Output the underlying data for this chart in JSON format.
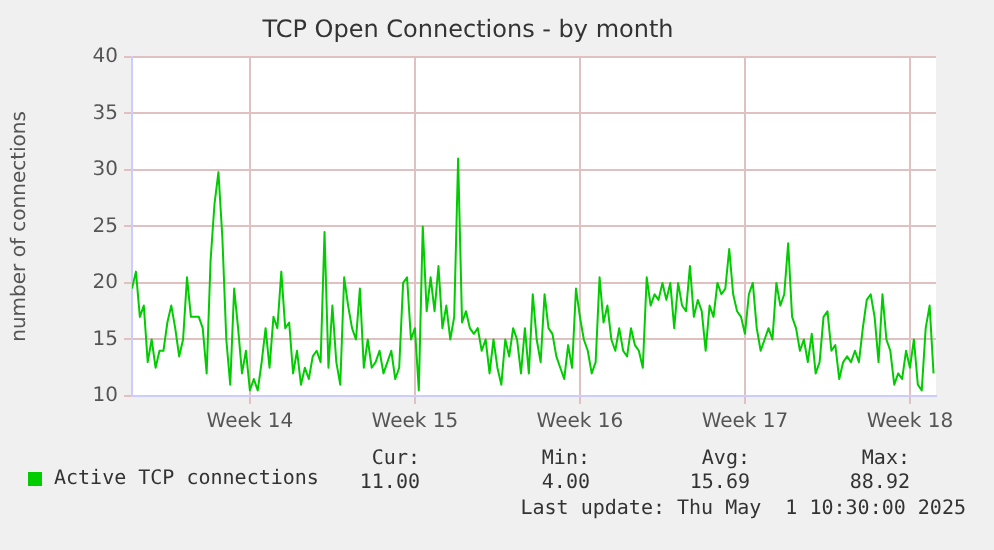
{
  "chart_data": {
    "type": "line",
    "title": "TCP Open Connections - by month",
    "ylabel": "number of connections",
    "x": [
      "2025-03-28T08:00",
      "2025-03-28T12:00",
      "2025-03-28T16:00",
      "2025-03-28T20:00",
      "2025-03-29T00:00",
      "2025-03-29T04:00",
      "2025-03-29T08:00",
      "2025-03-29T12:00",
      "2025-03-29T16:00",
      "2025-03-29T20:00",
      "2025-03-30T00:00",
      "2025-03-30T04:00",
      "2025-03-30T08:00",
      "2025-03-30T12:00",
      "2025-03-30T16:00",
      "2025-03-30T20:00",
      "2025-03-31T00:00",
      "2025-03-31T04:00",
      "2025-03-31T08:00",
      "2025-03-31T12:00",
      "2025-03-31T16:00",
      "2025-03-31T20:00",
      "2025-04-01T00:00",
      "2025-04-01T04:00",
      "2025-04-01T08:00",
      "2025-04-01T12:00",
      "2025-04-01T16:00",
      "2025-04-01T20:00",
      "2025-04-02T00:00",
      "2025-04-02T04:00",
      "2025-04-02T08:00",
      "2025-04-02T12:00",
      "2025-04-02T16:00",
      "2025-04-02T20:00",
      "2025-04-03T00:00",
      "2025-04-03T04:00",
      "2025-04-03T08:00",
      "2025-04-03T12:00",
      "2025-04-03T16:00",
      "2025-04-03T20:00",
      "2025-04-04T00:00",
      "2025-04-04T04:00",
      "2025-04-04T08:00",
      "2025-04-04T12:00",
      "2025-04-04T16:00",
      "2025-04-04T20:00",
      "2025-04-05T00:00",
      "2025-04-05T04:00",
      "2025-04-05T08:00",
      "2025-04-05T12:00",
      "2025-04-05T16:00",
      "2025-04-05T20:00",
      "2025-04-06T00:00",
      "2025-04-06T04:00",
      "2025-04-06T08:00",
      "2025-04-06T12:00",
      "2025-04-06T16:00",
      "2025-04-06T20:00",
      "2025-04-07T00:00",
      "2025-04-07T04:00",
      "2025-04-07T08:00",
      "2025-04-07T12:00",
      "2025-04-07T16:00",
      "2025-04-07T20:00",
      "2025-04-08T00:00",
      "2025-04-08T04:00",
      "2025-04-08T08:00",
      "2025-04-08T12:00",
      "2025-04-08T16:00",
      "2025-04-08T20:00",
      "2025-04-09T00:00",
      "2025-04-09T04:00",
      "2025-04-09T08:00",
      "2025-04-09T12:00",
      "2025-04-09T16:00",
      "2025-04-09T20:00",
      "2025-04-10T00:00",
      "2025-04-10T04:00",
      "2025-04-10T08:00",
      "2025-04-10T12:00",
      "2025-04-10T16:00",
      "2025-04-10T20:00",
      "2025-04-11T00:00",
      "2025-04-11T04:00",
      "2025-04-11T08:00",
      "2025-04-11T12:00",
      "2025-04-11T16:00",
      "2025-04-11T20:00",
      "2025-04-12T00:00",
      "2025-04-12T04:00",
      "2025-04-12T08:00",
      "2025-04-12T12:00",
      "2025-04-12T16:00",
      "2025-04-12T20:00",
      "2025-04-13T00:00",
      "2025-04-13T04:00",
      "2025-04-13T08:00",
      "2025-04-13T12:00",
      "2025-04-13T16:00",
      "2025-04-13T20:00",
      "2025-04-14T00:00",
      "2025-04-14T04:00",
      "2025-04-14T08:00",
      "2025-04-14T12:00",
      "2025-04-14T16:00",
      "2025-04-14T20:00",
      "2025-04-15T00:00",
      "2025-04-15T04:00",
      "2025-04-15T08:00",
      "2025-04-15T12:00",
      "2025-04-15T16:00",
      "2025-04-15T20:00",
      "2025-04-16T00:00",
      "2025-04-16T04:00",
      "2025-04-16T08:00",
      "2025-04-16T12:00",
      "2025-04-16T16:00",
      "2025-04-16T20:00",
      "2025-04-17T00:00",
      "2025-04-17T04:00",
      "2025-04-17T08:00",
      "2025-04-17T12:00",
      "2025-04-17T16:00",
      "2025-04-17T20:00",
      "2025-04-18T00:00",
      "2025-04-18T04:00",
      "2025-04-18T08:00",
      "2025-04-18T12:00",
      "2025-04-18T16:00",
      "2025-04-18T20:00",
      "2025-04-19T00:00",
      "2025-04-19T04:00",
      "2025-04-19T08:00",
      "2025-04-19T12:00",
      "2025-04-19T16:00",
      "2025-04-19T20:00",
      "2025-04-20T00:00",
      "2025-04-20T04:00",
      "2025-04-20T08:00",
      "2025-04-20T12:00",
      "2025-04-20T16:00",
      "2025-04-20T20:00",
      "2025-04-21T00:00",
      "2025-04-21T04:00",
      "2025-04-21T08:00",
      "2025-04-21T12:00",
      "2025-04-21T16:00",
      "2025-04-21T20:00",
      "2025-04-22T00:00",
      "2025-04-22T04:00",
      "2025-04-22T08:00",
      "2025-04-22T12:00",
      "2025-04-22T16:00",
      "2025-04-22T20:00",
      "2025-04-23T00:00",
      "2025-04-23T04:00",
      "2025-04-23T08:00",
      "2025-04-23T12:00",
      "2025-04-23T16:00",
      "2025-04-23T20:00",
      "2025-04-24T00:00",
      "2025-04-24T04:00",
      "2025-04-24T08:00",
      "2025-04-24T12:00",
      "2025-04-24T16:00",
      "2025-04-24T20:00",
      "2025-04-25T00:00",
      "2025-04-25T04:00",
      "2025-04-25T08:00",
      "2025-04-25T12:00",
      "2025-04-25T16:00",
      "2025-04-25T20:00",
      "2025-04-26T00:00",
      "2025-04-26T04:00",
      "2025-04-26T08:00",
      "2025-04-26T12:00",
      "2025-04-26T16:00",
      "2025-04-26T20:00",
      "2025-04-27T00:00",
      "2025-04-27T04:00",
      "2025-04-27T08:00",
      "2025-04-27T12:00",
      "2025-04-27T16:00",
      "2025-04-27T20:00",
      "2025-04-28T00:00",
      "2025-04-28T04:00",
      "2025-04-28T08:00",
      "2025-04-28T12:00",
      "2025-04-28T16:00",
      "2025-04-28T20:00",
      "2025-04-29T00:00",
      "2025-04-29T04:00",
      "2025-04-29T08:00",
      "2025-04-29T12:00",
      "2025-04-29T16:00",
      "2025-04-29T20:00",
      "2025-04-30T00:00",
      "2025-04-30T04:00",
      "2025-04-30T08:00",
      "2025-04-30T12:00",
      "2025-04-30T16:00",
      "2025-04-30T20:00",
      "2025-05-01T00:00",
      "2025-05-01T04:00",
      "2025-05-01T08:00"
    ],
    "series": [
      {
        "name": "Active TCP connections",
        "color": "#00cc00",
        "values": [
          19.5,
          21,
          17,
          18,
          13,
          15,
          12.5,
          14,
          14,
          16.5,
          18,
          16,
          13.5,
          15,
          20.5,
          17,
          17,
          17,
          16,
          12,
          22,
          27,
          29.8,
          24,
          15,
          11,
          19.5,
          16,
          12,
          14,
          10.5,
          11.5,
          10.5,
          13,
          16,
          12.5,
          17,
          16,
          21,
          16,
          16.5,
          12,
          14,
          11,
          12.5,
          11.5,
          13.5,
          14,
          13,
          24.5,
          12.5,
          18,
          13,
          11,
          20.5,
          18,
          16,
          15,
          19.5,
          12.5,
          15,
          12.5,
          13,
          14,
          12,
          13,
          14,
          11.5,
          12.5,
          20,
          20.5,
          15,
          16,
          10.5,
          25,
          17.5,
          20.5,
          17.5,
          21.5,
          16,
          18,
          15,
          17,
          31,
          16.5,
          17.5,
          16,
          15.5,
          16,
          14,
          15,
          12,
          15,
          12.5,
          11,
          15,
          13.5,
          16,
          15,
          12,
          16,
          12,
          19,
          15,
          13,
          19,
          16,
          15.5,
          13.5,
          12.5,
          11.5,
          14.5,
          12.5,
          19.5,
          17,
          15,
          14,
          12,
          13,
          20.5,
          16.5,
          18,
          15,
          14,
          16,
          14,
          13.5,
          16,
          14.5,
          14,
          12.5,
          20.5,
          18,
          19,
          18.5,
          20,
          18.5,
          20,
          16,
          20,
          18,
          17.5,
          21.5,
          17,
          18.5,
          17.5,
          14,
          18,
          17,
          20,
          19,
          19.5,
          23,
          19,
          17.5,
          17,
          15.5,
          19,
          20,
          16,
          14,
          15,
          16,
          15,
          20,
          18,
          19,
          23.5,
          17,
          16,
          14,
          15,
          13,
          15.5,
          12,
          13,
          17,
          17.5,
          14,
          14.5,
          11.5,
          13,
          13.5,
          13,
          14,
          13,
          16,
          18.5,
          19,
          17,
          13,
          19,
          15,
          14,
          11,
          12,
          11.5,
          14,
          12.5,
          15,
          11,
          10.5,
          16,
          18,
          12
        ]
      }
    ],
    "xlim": [
      "2025-03-28T08:00",
      "2025-05-01T10:30"
    ],
    "xticks": [
      {
        "value": "2025-04-02T08:00",
        "label": "Week 14"
      },
      {
        "value": "2025-04-09T08:00",
        "label": "Week 15"
      },
      {
        "value": "2025-04-16T08:00",
        "label": "Week 16"
      },
      {
        "value": "2025-04-23T08:00",
        "label": "Week 17"
      },
      {
        "value": "2025-04-30T08:00",
        "label": "Week 18"
      }
    ],
    "ylim": [
      10,
      40
    ],
    "yticks": [
      10,
      15,
      20,
      25,
      30,
      35,
      40
    ],
    "grid": true,
    "legend": "bottom",
    "marker": "none",
    "line_style": "solid",
    "annotations": [
      "Cur:",
      "11.00",
      "Min:",
      "4.00",
      "Avg:",
      "15.69",
      "Max:",
      "88.92",
      "Last update: Thu May  1 10:30:00 2025"
    ]
  }
}
